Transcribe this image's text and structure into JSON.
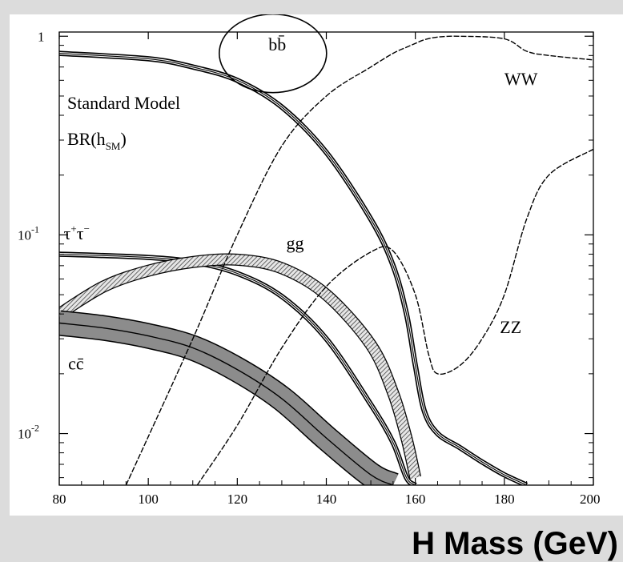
{
  "chart_data": {
    "type": "line",
    "title": "",
    "xlabel": "H Mass (GeV)",
    "ylabel": "",
    "xlim": [
      80,
      200
    ],
    "ylim": [
      0.0055,
      1.05
    ],
    "yscale": "log",
    "grid": false,
    "x_ticks": [
      "80",
      "100",
      "120",
      "140",
      "160",
      "180",
      "200"
    ],
    "y_ticks": [
      {
        "value": 1,
        "base": "1",
        "exp": ""
      },
      {
        "value": 0.1,
        "base": "10",
        "exp": "-1"
      },
      {
        "value": 0.01,
        "base": "10",
        "exp": "-2"
      }
    ],
    "annotations": {
      "model_line1": "Standard Model",
      "model_line2_base": "BR(h",
      "model_line2_sub": "SM",
      "model_line2_end": ")"
    },
    "highlight": {
      "shape": "circle",
      "target": "b b̄",
      "center": [
        128,
        0.82
      ]
    },
    "series": [
      {
        "name": "b b̄",
        "label_parts": [
          "b",
          "b̄"
        ],
        "label_at": [
          127,
          0.85
        ],
        "style": "solid-band",
        "x": [
          80,
          100,
          110,
          120,
          130,
          140,
          150,
          155,
          158,
          160,
          162,
          165,
          170,
          175,
          180,
          185
        ],
        "y": [
          0.82,
          0.77,
          0.7,
          0.6,
          0.44,
          0.26,
          0.12,
          0.07,
          0.04,
          0.022,
          0.013,
          0.01,
          0.0085,
          0.0072,
          0.0062,
          0.0055
        ]
      },
      {
        "name": "τ⁺τ⁻",
        "label_parts": [
          "τ",
          "+",
          "τ",
          "−"
        ],
        "label_at": [
          81,
          0.095
        ],
        "style": "solid-band",
        "x": [
          80,
          100,
          110,
          120,
          130,
          140,
          150,
          155,
          158,
          160
        ],
        "y": [
          0.08,
          0.077,
          0.073,
          0.064,
          0.049,
          0.03,
          0.014,
          0.009,
          0.006,
          0.0055
        ]
      },
      {
        "name": "g g",
        "label_parts": [
          "gg"
        ],
        "label_at": [
          131,
          0.085
        ],
        "style": "hatched-band",
        "x": [
          80,
          90,
          100,
          110,
          120,
          130,
          140,
          150,
          155,
          158,
          160
        ],
        "y": [
          0.04,
          0.055,
          0.066,
          0.073,
          0.075,
          0.068,
          0.05,
          0.028,
          0.016,
          0.0095,
          0.006
        ]
      },
      {
        "name": "c c̄",
        "label_parts": [
          "c",
          "c̄"
        ],
        "label_at": [
          82,
          0.021
        ],
        "style": "filled-band",
        "x": [
          80,
          90,
          100,
          110,
          120,
          130,
          140,
          150,
          155
        ],
        "y": [
          0.036,
          0.034,
          0.031,
          0.027,
          0.021,
          0.015,
          0.0095,
          0.0062,
          0.0055
        ]
      },
      {
        "name": "W W",
        "label_parts": [
          "WW"
        ],
        "label_at": [
          180,
          0.57
        ],
        "style": "dashed",
        "x": [
          95,
          110,
          120,
          130,
          140,
          150,
          155,
          158,
          160,
          162,
          165,
          170,
          180,
          185,
          190,
          200
        ],
        "y": [
          0.0055,
          0.03,
          0.1,
          0.28,
          0.5,
          0.7,
          0.82,
          0.88,
          0.92,
          0.96,
          0.99,
          1.0,
          0.97,
          0.84,
          0.8,
          0.76
        ]
      },
      {
        "name": "Z Z",
        "label_parts": [
          "ZZ"
        ],
        "label_at": [
          179,
          0.032
        ],
        "style": "dashed",
        "x": [
          111,
          120,
          130,
          140,
          150,
          155,
          160,
          163,
          165,
          170,
          175,
          180,
          185,
          190,
          200
        ],
        "y": [
          0.0055,
          0.011,
          0.027,
          0.055,
          0.082,
          0.083,
          0.05,
          0.025,
          0.02,
          0.022,
          0.03,
          0.05,
          0.12,
          0.2,
          0.27
        ]
      }
    ]
  }
}
